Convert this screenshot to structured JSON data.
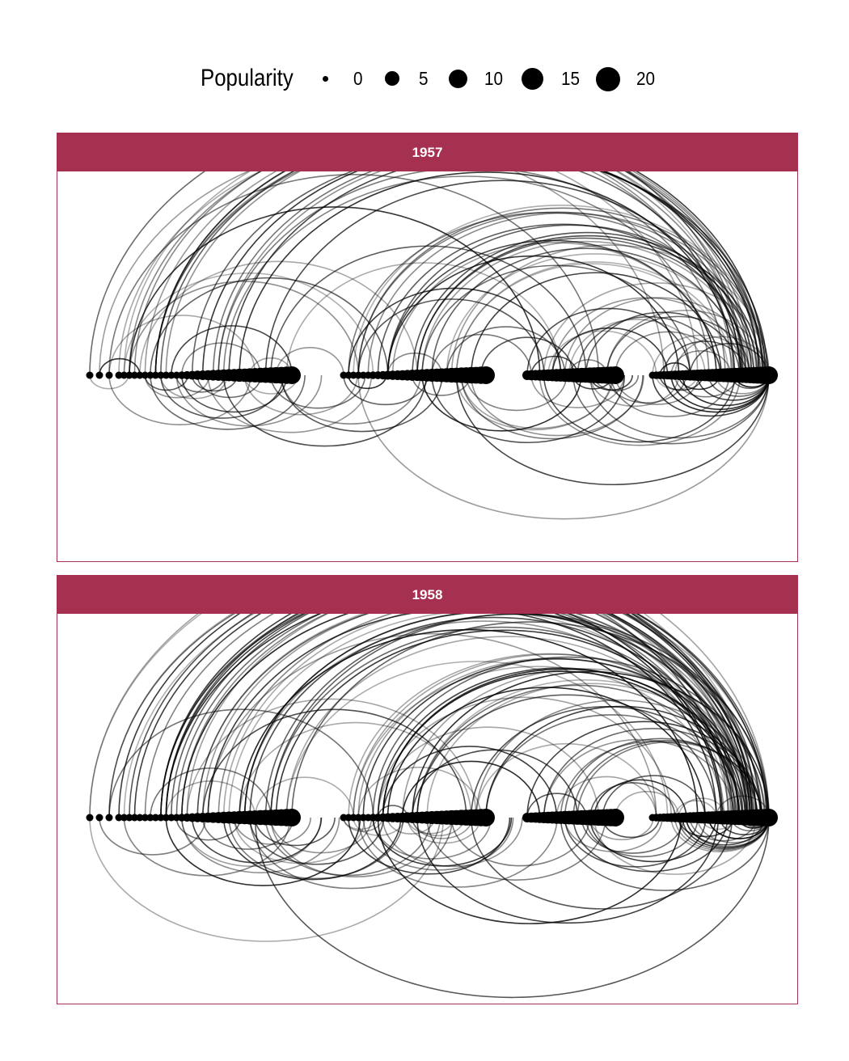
{
  "legend": {
    "title": "Popularity",
    "keys": [
      {
        "label": "0",
        "value": 0
      },
      {
        "label": "5",
        "value": 5
      },
      {
        "label": "10",
        "value": 10
      },
      {
        "label": "15",
        "value": 15
      },
      {
        "label": "20",
        "value": 20
      }
    ]
  },
  "colors": {
    "strip": "#a6304f",
    "border": "#a6304f",
    "node": "#000000",
    "edge": "#000000"
  },
  "panels": [
    {
      "label": "1957",
      "seed": 1957,
      "arcs_above": 95,
      "arcs_below": 60
    },
    {
      "label": "1958",
      "seed": 1958,
      "arcs_above": 105,
      "arcs_below": 70
    }
  ]
}
